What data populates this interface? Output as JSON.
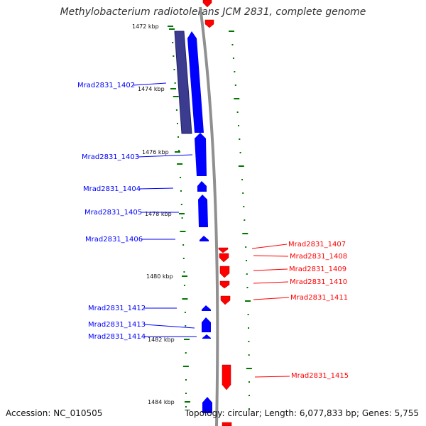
{
  "title": "Methylobacterium radiotolerans JCM 2831, complete genome",
  "footer": {
    "accession": "Accession: NC_010505",
    "summary": "Topology: circular; Length: 6,077,833 bp; Genes: 5,755"
  },
  "colors": {
    "forward": "#0000ff",
    "reverse": "#ff0000",
    "feature": "#3b3b8f",
    "backbone": "#888888",
    "ticks": "#007700"
  },
  "kbp_labels": [
    "1472 kbp",
    "1474 kbp",
    "1476 kbp",
    "1478 kbp",
    "1480 kbp",
    "1482 kbp",
    "1484 kbp"
  ],
  "forward_genes": [
    "Mrad2831_1402",
    "Mrad2831_1403",
    "Mrad2831_1404",
    "Mrad2831_1405",
    "Mrad2831_1406",
    "Mrad2831_1412",
    "Mrad2831_1413",
    "Mrad2831_1414"
  ],
  "reverse_genes": [
    "Mrad2831_1407",
    "Mrad2831_1408",
    "Mrad2831_1409",
    "Mrad2831_1410",
    "Mrad2831_1411",
    "Mrad2831_1415"
  ]
}
